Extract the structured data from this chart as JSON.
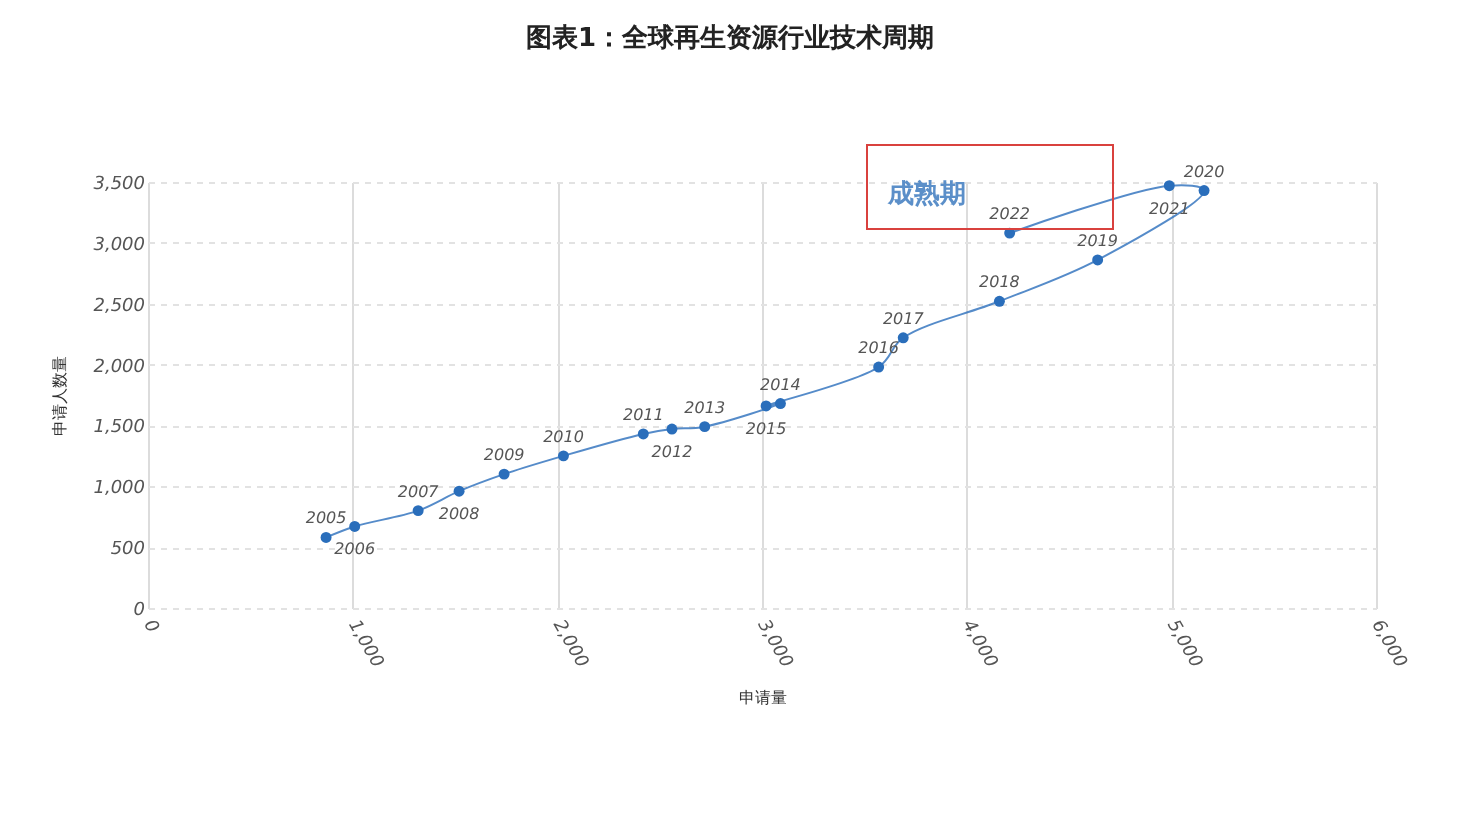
{
  "chart_data": {
    "type": "line",
    "title": "图表1：全球再生资源行业技术周期",
    "xlabel": "申请量",
    "ylabel": "申请人数量",
    "x": [
      870,
      1010,
      1320,
      1520,
      1740,
      2030,
      2420,
      2560,
      2720,
      3090,
      3020,
      3570,
      3690,
      4160,
      4640,
      5160,
      4990,
      4210
    ],
    "series": [
      {
        "color": "#2a6ebb",
        "values": [
          580,
          670,
          800,
          960,
          1100,
          1250,
          1430,
          1470,
          1490,
          1680,
          1660,
          1980,
          2220,
          2520,
          2860,
          3430,
          3470,
          3080
        ]
      }
    ],
    "xlim": [
      0,
      6000
    ],
    "xticks": [
      0,
      {
        "value": 1000,
        "label": "1,000"
      },
      {
        "value": 2000,
        "label": "2,000"
      },
      {
        "value": 3000,
        "label": "3,000"
      },
      {
        "value": 4000,
        "label": "4,000"
      },
      {
        "value": 5000,
        "label": "5,000"
      },
      {
        "value": 6000,
        "label": "6,000"
      }
    ],
    "ylim": [
      0,
      3500
    ],
    "yticks": [
      0,
      500,
      {
        "value": 1000,
        "label": "1,000"
      },
      {
        "value": 1500,
        "label": "1,500"
      },
      {
        "value": 2000,
        "label": "2,000"
      },
      {
        "value": 2500,
        "label": "2,500"
      },
      {
        "value": 3000,
        "label": "3,000"
      },
      {
        "value": 3500,
        "label": "3,500"
      }
    ],
    "grid": true,
    "marker": "circle",
    "line_style": "solid",
    "annotations": [
      "成熟期",
      {
        "text": "2005",
        "x": 870,
        "y": 580
      },
      {
        "text": "2006",
        "x": 1010,
        "y": 670
      },
      {
        "text": "2007",
        "x": 1320,
        "y": 800
      },
      {
        "text": "2008",
        "x": 1520,
        "y": 960
      },
      {
        "text": "2009",
        "x": 1740,
        "y": 1100
      },
      {
        "text": "2010",
        "x": 2030,
        "y": 1250
      },
      {
        "text": "2011",
        "x": 2420,
        "y": 1430
      },
      {
        "text": "2012",
        "x": 2560,
        "y": 1470
      },
      {
        "text": "2013",
        "x": 2720,
        "y": 1490
      },
      {
        "text": "2014",
        "x": 3090,
        "y": 1680
      },
      {
        "text": "2015",
        "x": 3020,
        "y": 1660
      },
      {
        "text": "2016",
        "x": 3570,
        "y": 1980
      },
      {
        "text": "2017",
        "x": 3690,
        "y": 2220
      },
      {
        "text": "2018",
        "x": 4160,
        "y": 2520
      },
      {
        "text": "2019",
        "x": 4640,
        "y": 2860
      },
      {
        "text": "2020",
        "x": 5160,
        "y": 3430
      },
      {
        "text": "2021",
        "x": 4990,
        "y": 3470
      },
      {
        "text": "2022",
        "x": 4210,
        "y": 3080
      }
    ]
  }
}
